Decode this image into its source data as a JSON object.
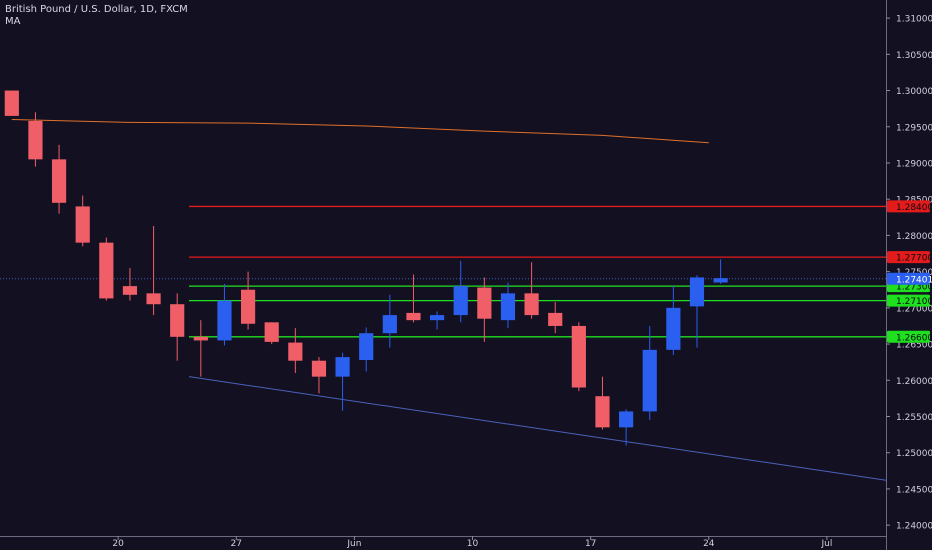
{
  "header": {
    "symbol_title": "British Pound / U.S. Dollar, 1D, FXCM",
    "indicator": "MA"
  },
  "colors": {
    "background": "#131022",
    "up": "#2a5ff0",
    "down": "#f05f67",
    "ma": "#e0702a",
    "resistance": "#e31b1b",
    "support": "#1fe01f",
    "trendline": "#4a62b8",
    "axis_text": "#cfcfdc",
    "price_tag_text": "#0a0a14"
  },
  "chart_data": {
    "type": "candlestick",
    "title": "British Pound / U.S. Dollar, 1D, FXCM",
    "indicator": "MA",
    "y_axis": {
      "ticks": [
        "1.24000",
        "1.24500",
        "1.25000",
        "1.25500",
        "1.26000",
        "1.26500",
        "1.27000",
        "1.27500",
        "1.28000",
        "1.28500",
        "1.29000",
        "1.29500",
        "1.30000",
        "1.30500",
        "1.31000"
      ],
      "range": [
        1.2385,
        1.3125
      ]
    },
    "x_axis": {
      "labels": [
        {
          "label": "20",
          "day": 4.5
        },
        {
          "label": "27",
          "day": 9.5
        },
        {
          "label": "Jun",
          "day": 14.5
        },
        {
          "label": "10",
          "day": 19.5
        },
        {
          "label": "17",
          "day": 24.5
        },
        {
          "label": "24",
          "day": 29.5
        },
        {
          "label": "Jul",
          "day": 34.5
        }
      ],
      "day_range": [
        -0.5,
        37
      ]
    },
    "candles": [
      {
        "o": 1.3,
        "h": 1.3,
        "l": 1.2965,
        "c": 1.2965
      },
      {
        "o": 1.2958,
        "h": 1.297,
        "l": 1.2895,
        "c": 1.2905
      },
      {
        "o": 1.2905,
        "h": 1.2925,
        "l": 1.283,
        "c": 1.2845
      },
      {
        "o": 1.284,
        "h": 1.2855,
        "l": 1.2785,
        "c": 1.279
      },
      {
        "o": 1.279,
        "h": 1.2797,
        "l": 1.271,
        "c": 1.2713
      },
      {
        "o": 1.273,
        "h": 1.2755,
        "l": 1.271,
        "c": 1.2718
      },
      {
        "o": 1.272,
        "h": 1.2813,
        "l": 1.269,
        "c": 1.2705
      },
      {
        "o": 1.2705,
        "h": 1.272,
        "l": 1.2627,
        "c": 1.266
      },
      {
        "o": 1.266,
        "h": 1.2683,
        "l": 1.2605,
        "c": 1.2655
      },
      {
        "o": 1.2655,
        "h": 1.2733,
        "l": 1.2648,
        "c": 1.271
      },
      {
        "o": 1.2725,
        "h": 1.275,
        "l": 1.267,
        "c": 1.2678
      },
      {
        "o": 1.268,
        "h": 1.268,
        "l": 1.265,
        "c": 1.2653
      },
      {
        "o": 1.2652,
        "h": 1.2672,
        "l": 1.261,
        "c": 1.2627
      },
      {
        "o": 1.2627,
        "h": 1.2632,
        "l": 1.2582,
        "c": 1.2605
      },
      {
        "o": 1.2605,
        "h": 1.2638,
        "l": 1.2558,
        "c": 1.2632
      },
      {
        "o": 1.2628,
        "h": 1.2673,
        "l": 1.2612,
        "c": 1.2665
      },
      {
        "o": 1.2665,
        "h": 1.2718,
        "l": 1.2645,
        "c": 1.269
      },
      {
        "o": 1.2693,
        "h": 1.2746,
        "l": 1.268,
        "c": 1.2683
      },
      {
        "o": 1.2683,
        "h": 1.2695,
        "l": 1.267,
        "c": 1.269
      },
      {
        "o": 1.269,
        "h": 1.2765,
        "l": 1.268,
        "c": 1.273
      },
      {
        "o": 1.2728,
        "h": 1.2742,
        "l": 1.2653,
        "c": 1.2685
      },
      {
        "o": 1.2683,
        "h": 1.2735,
        "l": 1.2672,
        "c": 1.272
      },
      {
        "o": 1.272,
        "h": 1.2763,
        "l": 1.2685,
        "c": 1.269
      },
      {
        "o": 1.2693,
        "h": 1.2708,
        "l": 1.2665,
        "c": 1.2675
      },
      {
        "o": 1.2675,
        "h": 1.268,
        "l": 1.2585,
        "c": 1.259
      },
      {
        "o": 1.2578,
        "h": 1.2605,
        "l": 1.2532,
        "c": 1.2535
      },
      {
        "o": 1.2535,
        "h": 1.256,
        "l": 1.251,
        "c": 1.2557
      },
      {
        "o": 1.2557,
        "h": 1.2675,
        "l": 1.2545,
        "c": 1.2642
      },
      {
        "o": 1.2642,
        "h": 1.273,
        "l": 1.2635,
        "c": 1.27
      },
      {
        "o": 1.2702,
        "h": 1.2745,
        "l": 1.2645,
        "c": 1.2742
      },
      {
        "o": 1.2735,
        "h": 1.2767,
        "l": 1.2733,
        "c": 1.2741
      }
    ],
    "moving_average": [
      {
        "day": 0,
        "v": 1.296
      },
      {
        "day": 5,
        "v": 1.2956
      },
      {
        "day": 10,
        "v": 1.2955
      },
      {
        "day": 15,
        "v": 1.2951
      },
      {
        "day": 20,
        "v": 1.2944
      },
      {
        "day": 25,
        "v": 1.2938
      },
      {
        "day": 29.5,
        "v": 1.2928
      }
    ],
    "horizontal_levels": [
      {
        "price": "1.28400",
        "value": 1.284,
        "kind": "resistance",
        "from_day": 7.5
      },
      {
        "price": "1.27700",
        "value": 1.277,
        "kind": "resistance",
        "from_day": 7.5
      },
      {
        "price": "1.27300",
        "value": 1.273,
        "kind": "support",
        "from_day": 7.5
      },
      {
        "price": "1.27100",
        "value": 1.271,
        "kind": "support",
        "from_day": 7.5
      },
      {
        "price": "1.26600",
        "value": 1.266,
        "kind": "support",
        "from_day": 7.5
      }
    ],
    "current_price": {
      "price": "1.27401",
      "value": 1.27401
    },
    "trendline": {
      "from": {
        "day": 7.5,
        "v": 1.2605
      },
      "to": {
        "day": 37,
        "v": 1.2462
      }
    }
  }
}
